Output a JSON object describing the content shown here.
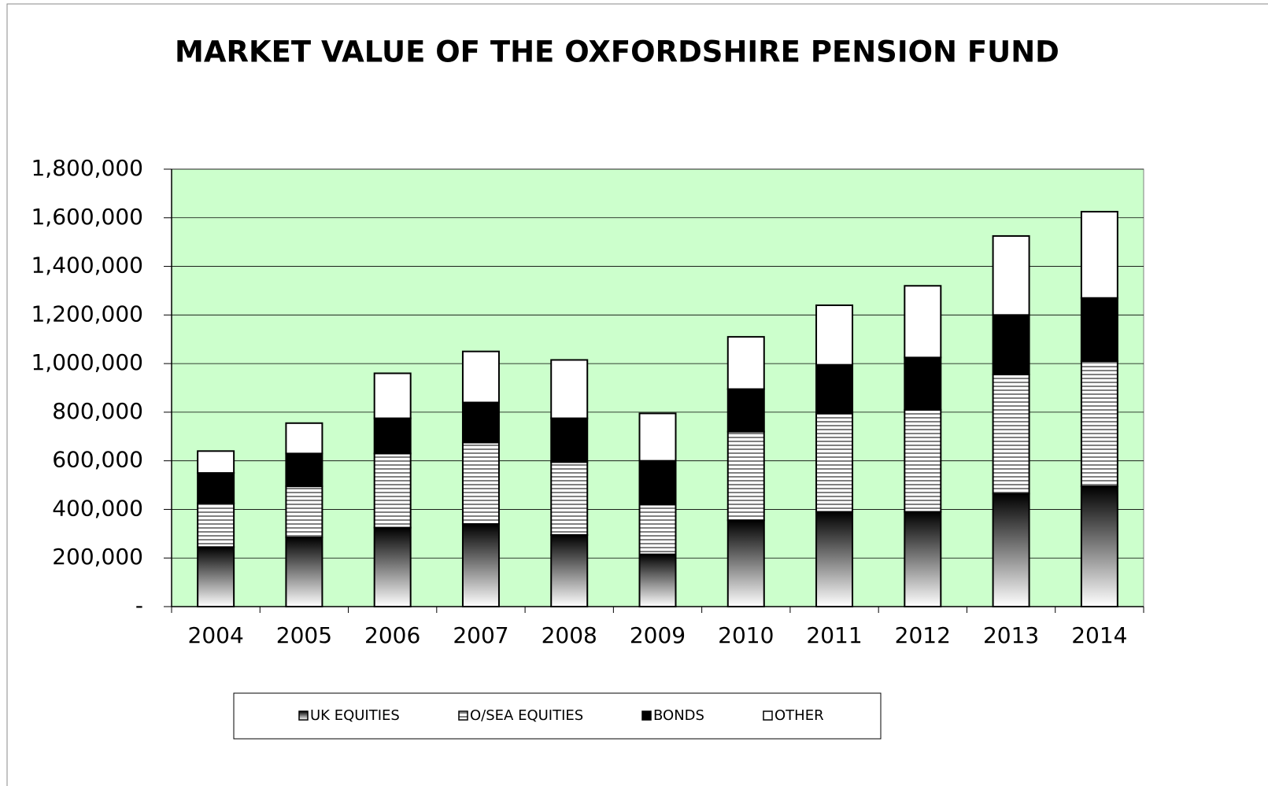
{
  "chart_data": {
    "type": "stacked_bar",
    "title": "MARKET VALUE OF THE OXFORDSHIRE PENSION FUND",
    "categories": [
      "2004",
      "2005",
      "2006",
      "2007",
      "2008",
      "2009",
      "2010",
      "2011",
      "2012",
      "2013",
      "2014"
    ],
    "series": [
      {
        "name": "UK EQUITIES",
        "color": "#000000",
        "pattern": "gradient",
        "values": [
          245000,
          285000,
          325000,
          340000,
          295000,
          215000,
          355000,
          390000,
          390000,
          465000,
          495000
        ]
      },
      {
        "name": "O/SEA EQUITIES",
        "color": "#808080",
        "pattern": "stripes",
        "values": [
          180000,
          210000,
          305000,
          335000,
          300000,
          205000,
          365000,
          405000,
          420000,
          490000,
          515000
        ]
      },
      {
        "name": "BONDS",
        "color": "#000000",
        "pattern": "solid",
        "values": [
          125000,
          135000,
          145000,
          165000,
          180000,
          180000,
          175000,
          200000,
          215000,
          245000,
          260000
        ]
      },
      {
        "name": "OTHER",
        "color": "#ffffff",
        "pattern": "solid",
        "values": [
          90000,
          125000,
          185000,
          210000,
          240000,
          195000,
          215000,
          245000,
          295000,
          325000,
          355000
        ]
      }
    ],
    "ylim": [
      0,
      1800000
    ],
    "yticks": [
      {
        "value": 0,
        "label": "-"
      },
      {
        "value": 200000,
        "label": "200,000"
      },
      {
        "value": 400000,
        "label": "400,000"
      },
      {
        "value": 600000,
        "label": "600,000"
      },
      {
        "value": 800000,
        "label": "800,000"
      },
      {
        "value": 1000000,
        "label": "1,000,000"
      },
      {
        "value": 1200000,
        "label": "1,200,000"
      },
      {
        "value": 1400000,
        "label": "1,400,000"
      },
      {
        "value": 1600000,
        "label": "1,600,000"
      },
      {
        "value": 1800000,
        "label": "1,800,000"
      }
    ],
    "grid": true,
    "plot_background": "#ccffcc",
    "legend": "bottom"
  }
}
